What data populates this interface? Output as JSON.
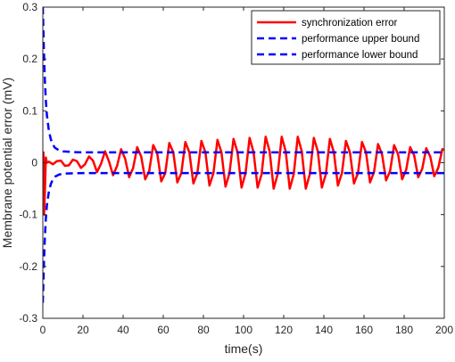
{
  "chart_data": {
    "type": "line",
    "title": "",
    "xlabel": "time(s)",
    "ylabel": "Membrane potential error (mV)",
    "xlim": [
      0,
      200
    ],
    "ylim": [
      -0.3,
      0.3
    ],
    "x_ticks": [
      0,
      20,
      40,
      60,
      80,
      100,
      120,
      140,
      160,
      180,
      200
    ],
    "y_ticks": [
      -0.3,
      -0.2,
      -0.1,
      0,
      0.1,
      0.2,
      0.3
    ],
    "grid": false,
    "legend_position": "top-right",
    "series": [
      {
        "name": "synchronization error",
        "color": "#ff0000",
        "style": "solid",
        "x": [
          0,
          0.3,
          0.6,
          1,
          1.5,
          2,
          3,
          5,
          7,
          9,
          11,
          13,
          15,
          17,
          19,
          21,
          23,
          25,
          27,
          29,
          31,
          33,
          35,
          37,
          39,
          41,
          43,
          45,
          47,
          49,
          51,
          53,
          55,
          57,
          59,
          61,
          63,
          65,
          67,
          69,
          71,
          73,
          75,
          77,
          79,
          81,
          83,
          85,
          87,
          89,
          91,
          93,
          95,
          97,
          99,
          101,
          103,
          105,
          107,
          109,
          111,
          113,
          115,
          117,
          119,
          121,
          123,
          125,
          127,
          129,
          131,
          133,
          135,
          137,
          139,
          141,
          143,
          145,
          147,
          149,
          151,
          153,
          155,
          157,
          159,
          161,
          163,
          165,
          167,
          169,
          171,
          173,
          175,
          177,
          179,
          181,
          183,
          185,
          187,
          189,
          191,
          193,
          195,
          197,
          199,
          200
        ],
        "values": [
          0,
          0.02,
          -0.1,
          -0.06,
          0.01,
          0,
          0.002,
          -0.003,
          0.003,
          0.004,
          -0.006,
          -0.005,
          0.006,
          0.003,
          -0.01,
          -0.003,
          0.012,
          0.004,
          -0.018,
          -0.002,
          0.022,
          0.002,
          -0.024,
          -0.006,
          0.026,
          0.008,
          -0.028,
          -0.01,
          0.03,
          0.012,
          -0.032,
          -0.016,
          0.034,
          0.018,
          -0.036,
          -0.02,
          0.038,
          0.02,
          -0.038,
          -0.02,
          0.04,
          0.02,
          -0.04,
          -0.02,
          0.042,
          0.02,
          -0.044,
          -0.02,
          0.044,
          0.02,
          -0.046,
          -0.02,
          0.046,
          0.02,
          -0.048,
          -0.02,
          0.048,
          0.02,
          -0.048,
          -0.022,
          0.05,
          0.022,
          -0.05,
          -0.022,
          0.05,
          0.022,
          -0.05,
          -0.022,
          0.05,
          0.022,
          -0.05,
          -0.022,
          0.048,
          0.022,
          -0.048,
          -0.022,
          0.046,
          0.02,
          -0.044,
          -0.02,
          0.042,
          0.02,
          -0.04,
          -0.02,
          0.04,
          0.02,
          -0.038,
          -0.018,
          0.036,
          0.016,
          -0.034,
          -0.016,
          0.034,
          0.016,
          -0.032,
          -0.014,
          0.03,
          0.014,
          -0.028,
          -0.012,
          0.028,
          0.012,
          -0.026,
          -0.01,
          0.026,
          0.025
        ]
      },
      {
        "name": "performance upper bound",
        "color": "#0000ff",
        "style": "dashed",
        "x": [
          0,
          0.5,
          1,
          1.5,
          2,
          3,
          4,
          5,
          6,
          8,
          10,
          15,
          20,
          40,
          60,
          100,
          150,
          200
        ],
        "values": [
          0.3,
          0.22,
          0.16,
          0.12,
          0.093,
          0.062,
          0.045,
          0.035,
          0.029,
          0.024,
          0.022,
          0.0205,
          0.02,
          0.02,
          0.02,
          0.02,
          0.02,
          0.02
        ]
      },
      {
        "name": "performance lower bound",
        "color": "#0000ff",
        "style": "dashed",
        "x": [
          0,
          0.5,
          1,
          1.5,
          2,
          3,
          4,
          5,
          6,
          8,
          10,
          15,
          20,
          40,
          60,
          100,
          150,
          200
        ],
        "values": [
          -0.27,
          -0.2,
          -0.145,
          -0.108,
          -0.083,
          -0.056,
          -0.041,
          -0.032,
          -0.027,
          -0.023,
          -0.021,
          -0.0203,
          -0.02,
          -0.02,
          -0.02,
          -0.02,
          -0.02,
          -0.02
        ]
      }
    ]
  }
}
